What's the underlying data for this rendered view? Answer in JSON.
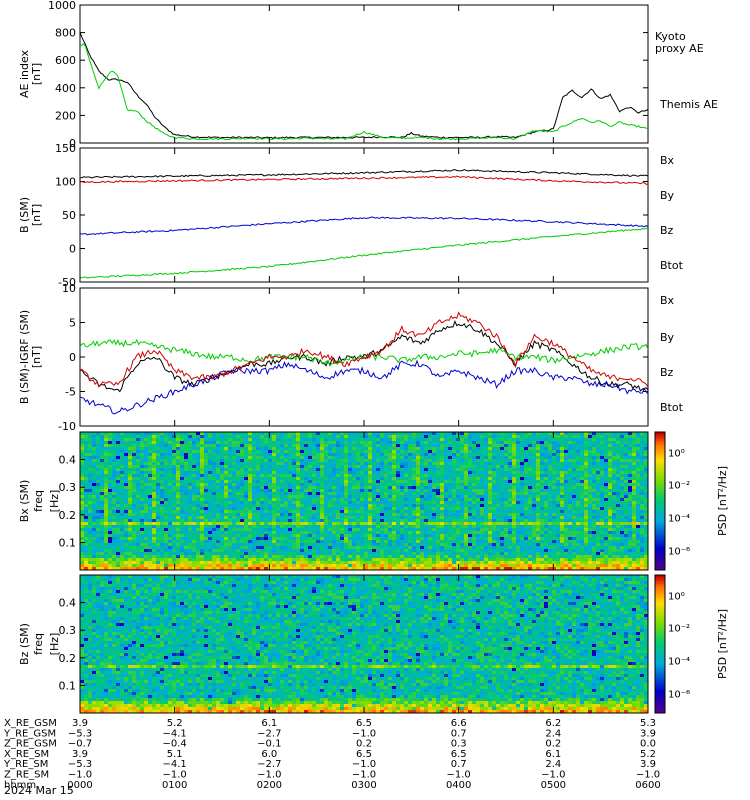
{
  "chart_data": [
    {
      "type": "line",
      "ylabel": "AE index",
      "yunit": "[nT]",
      "ylim": [
        0,
        1000
      ],
      "yticks": [
        "1000",
        "800",
        "600",
        "400",
        "200",
        "0"
      ],
      "xlim": [
        0,
        6
      ],
      "series": [
        {
          "name": "Themis AE",
          "color": "#000000",
          "x": [
            0,
            0.1,
            0.2,
            0.3,
            0.4,
            0.5,
            0.6,
            0.7,
            0.8,
            0.9,
            1.0,
            1.2,
            1.4,
            1.6,
            1.8,
            2.0,
            2.2,
            2.4,
            2.6,
            2.8,
            3.0,
            3.2,
            3.4,
            3.5,
            3.6,
            3.8,
            4.0,
            4.2,
            4.4,
            4.6,
            4.8,
            5.0,
            5.1,
            5.2,
            5.3,
            5.4,
            5.5,
            5.6,
            5.7,
            5.8,
            5.9,
            6.0
          ],
          "y": [
            800,
            640,
            520,
            460,
            460,
            440,
            350,
            280,
            180,
            110,
            60,
            45,
            40,
            40,
            40,
            38,
            40,
            40,
            40,
            40,
            40,
            45,
            40,
            70,
            50,
            40,
            40,
            40,
            45,
            40,
            80,
            100,
            330,
            380,
            330,
            390,
            320,
            350,
            230,
            260,
            220,
            240
          ]
        },
        {
          "name": "Kyoto proxy AE",
          "color": "#00cc00",
          "x": [
            0,
            0.05,
            0.1,
            0.2,
            0.3,
            0.35,
            0.4,
            0.5,
            0.6,
            0.7,
            0.8,
            0.9,
            1.0,
            1.2,
            1.4,
            1.6,
            1.8,
            2.0,
            2.2,
            2.4,
            2.6,
            2.8,
            3.0,
            3.2,
            3.4,
            3.6,
            3.8,
            4.0,
            4.2,
            4.4,
            4.6,
            4.8,
            5.0,
            5.1,
            5.2,
            5.3,
            5.4,
            5.5,
            5.6,
            5.7,
            5.8,
            5.9,
            6.0
          ],
          "y": [
            700,
            720,
            600,
            400,
            500,
            520,
            480,
            240,
            230,
            160,
            110,
            60,
            40,
            30,
            30,
            30,
            35,
            30,
            30,
            35,
            30,
            30,
            80,
            40,
            35,
            40,
            30,
            30,
            35,
            40,
            30,
            90,
            80,
            120,
            150,
            180,
            150,
            160,
            120,
            150,
            130,
            120,
            100
          ]
        }
      ]
    },
    {
      "type": "line",
      "ylabel": "B (SM)",
      "yunit": "[nT]",
      "ylim": [
        -50,
        150
      ],
      "yticks": [
        "150",
        "100",
        "50",
        "0",
        "-50"
      ],
      "xlim": [
        0,
        6
      ],
      "series": [
        {
          "name": "Btot",
          "color": "#000000",
          "x": [
            0,
            1,
            2,
            3,
            4,
            5,
            6
          ],
          "y": [
            106,
            108,
            110,
            113,
            117,
            113,
            108
          ]
        },
        {
          "name": "Bx",
          "color": "#0000cc",
          "x": [
            0,
            1,
            2,
            3,
            4,
            5,
            6
          ],
          "y": [
            21,
            27,
            37,
            46,
            45,
            40,
            33
          ]
        },
        {
          "name": "By",
          "color": "#00cc00",
          "x": [
            0,
            1,
            2,
            3,
            4,
            5,
            6
          ],
          "y": [
            -44,
            -37,
            -27,
            -10,
            5,
            18,
            30
          ]
        },
        {
          "name": "Bz",
          "color": "#cc0000",
          "x": [
            0,
            1,
            2,
            3,
            4,
            5,
            6
          ],
          "y": [
            99,
            101,
            103,
            105,
            107,
            101,
            97
          ]
        }
      ]
    },
    {
      "type": "line",
      "ylabel": "B (SM)-IGRF (SM)",
      "yunit": "[nT]",
      "ylim": [
        -10,
        10
      ],
      "yticks": [
        "10",
        "5",
        "0",
        "-5",
        "-10"
      ],
      "xlim": [
        0,
        6
      ],
      "series": [
        {
          "name": "Btot",
          "color": "#000000",
          "x": [
            0,
            0.2,
            0.4,
            0.6,
            0.8,
            1.0,
            1.2,
            1.4,
            1.6,
            1.8,
            2.0,
            2.2,
            2.4,
            2.6,
            2.8,
            3.0,
            3.2,
            3.4,
            3.6,
            3.8,
            4.0,
            4.2,
            4.4,
            4.6,
            4.8,
            5.0,
            5.2,
            5.4,
            5.6,
            5.8,
            6.0
          ],
          "y": [
            -2,
            -4,
            -5,
            -1,
            0,
            -3,
            -4,
            -3,
            -2,
            -1,
            -1,
            0,
            0,
            -1,
            0,
            0,
            1,
            3,
            2,
            4,
            5,
            4,
            2,
            -1,
            2,
            1,
            -1,
            -3,
            -4,
            -4,
            -5
          ]
        },
        {
          "name": "Bx",
          "color": "#0000cc",
          "x": [
            0,
            0.2,
            0.4,
            0.6,
            0.8,
            1.0,
            1.2,
            1.4,
            1.6,
            1.8,
            2.0,
            2.2,
            2.4,
            2.6,
            2.8,
            3.0,
            3.2,
            3.4,
            3.6,
            3.8,
            4.0,
            4.2,
            4.4,
            4.6,
            4.8,
            5.0,
            5.2,
            5.4,
            5.6,
            5.8,
            6.0
          ],
          "y": [
            -6,
            -7,
            -8,
            -7,
            -6,
            -5,
            -4,
            -3,
            -2,
            -2,
            -2,
            -1,
            -2,
            -3,
            -2,
            -2,
            -3,
            -1,
            -1,
            -3,
            -2,
            -3,
            -4,
            -2,
            -2,
            -3,
            -3,
            -4,
            -4,
            -5,
            -5
          ]
        },
        {
          "name": "By",
          "color": "#00cc00",
          "x": [
            0,
            0.2,
            0.4,
            0.6,
            0.8,
            1.0,
            1.2,
            1.4,
            1.6,
            1.8,
            2.0,
            2.2,
            2.4,
            2.6,
            2.8,
            3.0,
            3.2,
            3.4,
            3.6,
            3.8,
            4.0,
            4.2,
            4.4,
            4.6,
            4.8,
            5.0,
            5.2,
            5.4,
            5.6,
            5.8,
            6.0
          ],
          "y": [
            1.5,
            2,
            2,
            2,
            1.5,
            1,
            0.5,
            0,
            0,
            -0.5,
            0,
            0,
            0,
            -1,
            -0.5,
            0,
            0,
            -0.5,
            0,
            0,
            0.5,
            0.5,
            1,
            0,
            0,
            -0.5,
            0,
            0.5,
            1,
            1.5,
            1.5
          ]
        },
        {
          "name": "Bz",
          "color": "#cc0000",
          "x": [
            0,
            0.2,
            0.4,
            0.6,
            0.8,
            1.0,
            1.2,
            1.4,
            1.6,
            1.8,
            2.0,
            2.2,
            2.4,
            2.6,
            2.8,
            3.0,
            3.2,
            3.4,
            3.6,
            3.8,
            4.0,
            4.2,
            4.4,
            4.6,
            4.8,
            5.0,
            5.2,
            5.4,
            5.6,
            5.8,
            6.0
          ],
          "y": [
            -2,
            -4,
            -4,
            0,
            1,
            -2,
            -3,
            -3,
            -2,
            -1,
            0,
            0,
            1,
            0,
            -1,
            0,
            1,
            4,
            3,
            5,
            6,
            5,
            3,
            -1,
            3,
            2,
            0,
            -2,
            -3,
            -3,
            -4
          ]
        }
      ]
    },
    {
      "type": "heatmap",
      "ylabel": "Bx (SM)",
      "ylabel2": "freq",
      "yunit": "[Hz]",
      "ylim": [
        0,
        0.5
      ],
      "yticks": [
        "0.4",
        "0.3",
        "0.2",
        "0.1"
      ],
      "xlim": [
        0,
        6
      ],
      "colorbar_label": "PSD [nT²/Hz]",
      "colorbar_ticks": [
        "10⁰",
        "10⁻²",
        "10⁻⁴",
        "10⁻⁶"
      ]
    },
    {
      "type": "heatmap",
      "ylabel": "Bz (SM)",
      "ylabel2": "freq",
      "yunit": "[Hz]",
      "ylim": [
        0,
        0.5
      ],
      "yticks": [
        "0.4",
        "0.3",
        "0.2",
        "0.1"
      ],
      "xlim": [
        0,
        6
      ],
      "colorbar_label": "PSD [nT²/Hz]",
      "colorbar_ticks": [
        "10⁰",
        "10⁻²",
        "10⁻⁴",
        "10⁻⁶"
      ]
    }
  ],
  "annotation_rows": [
    {
      "label": "X_RE_GSM",
      "values": [
        "3.9",
        "5.2",
        "6.1",
        "6.5",
        "6.6",
        "6.2",
        "5.3"
      ]
    },
    {
      "label": "Y_RE_GSM",
      "values": [
        "−5.3",
        "−4.1",
        "−2.7",
        "−1.0",
        "0.7",
        "2.4",
        "3.9"
      ]
    },
    {
      "label": "Z_RE_GSM",
      "values": [
        "−0.7",
        "−0.4",
        "−0.1",
        "0.2",
        "0.3",
        "0.2",
        "0.0"
      ]
    },
    {
      "label": "X_RE_SM",
      "values": [
        "3.9",
        "5.1",
        "6.0",
        "6.5",
        "6.5",
        "6.1",
        "5.2"
      ]
    },
    {
      "label": "Y_RE_SM",
      "values": [
        "−5.3",
        "−4.1",
        "−2.7",
        "−1.0",
        "0.7",
        "2.4",
        "3.9"
      ]
    },
    {
      "label": "Z_RE_SM",
      "values": [
        "−1.0",
        "−1.0",
        "−1.0",
        "−1.0",
        "−1.0",
        "−1.0",
        "−1.0"
      ]
    },
    {
      "label": "hhmm",
      "values": [
        "0000",
        "0100",
        "0200",
        "0300",
        "0400",
        "0500",
        "0600"
      ]
    }
  ],
  "date_label": "2024 Mar 15",
  "colors": {
    "black": "#000000",
    "blue": "#0000cc",
    "green": "#00cc00",
    "red": "#cc0000"
  }
}
